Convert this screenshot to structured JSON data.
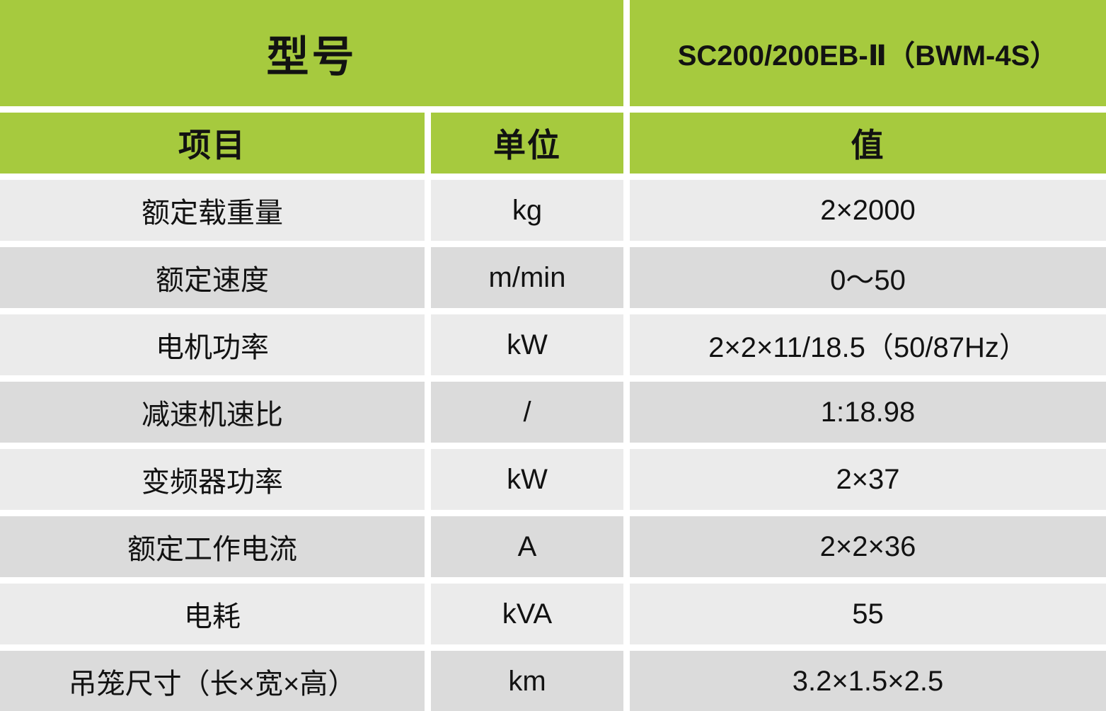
{
  "table": {
    "model_label": "型号",
    "model_value": "SC200/200EB-Ⅱ（BWM-4S）",
    "columns": [
      "项目",
      "单位",
      "值"
    ],
    "rows": [
      {
        "item": "额定载重量",
        "unit": "kg",
        "value": "2×2000"
      },
      {
        "item": "额定速度",
        "unit": "m/min",
        "value": "0～50"
      },
      {
        "item": "电机功率",
        "unit": "kW",
        "value": "2×2×11/18.5（50/87Hz）"
      },
      {
        "item": "减速机速比",
        "unit": "/",
        "value": "1:18.98"
      },
      {
        "item": "变频器功率",
        "unit": "kW",
        "value": "2×37"
      },
      {
        "item": "额定工作电流",
        "unit": "A",
        "value": "2×2×36"
      },
      {
        "item": "电耗",
        "unit": "kVA",
        "value": "55"
      },
      {
        "item": "吊笼尺寸（长×宽×高）",
        "unit": "km",
        "value": "3.2×1.5×2.5"
      }
    ],
    "colors": {
      "header_green": "#a6ca3e",
      "row_light": "#ebebeb",
      "row_dark": "#dbdbdb",
      "gutter": "#ffffff",
      "text": "#121212"
    }
  }
}
